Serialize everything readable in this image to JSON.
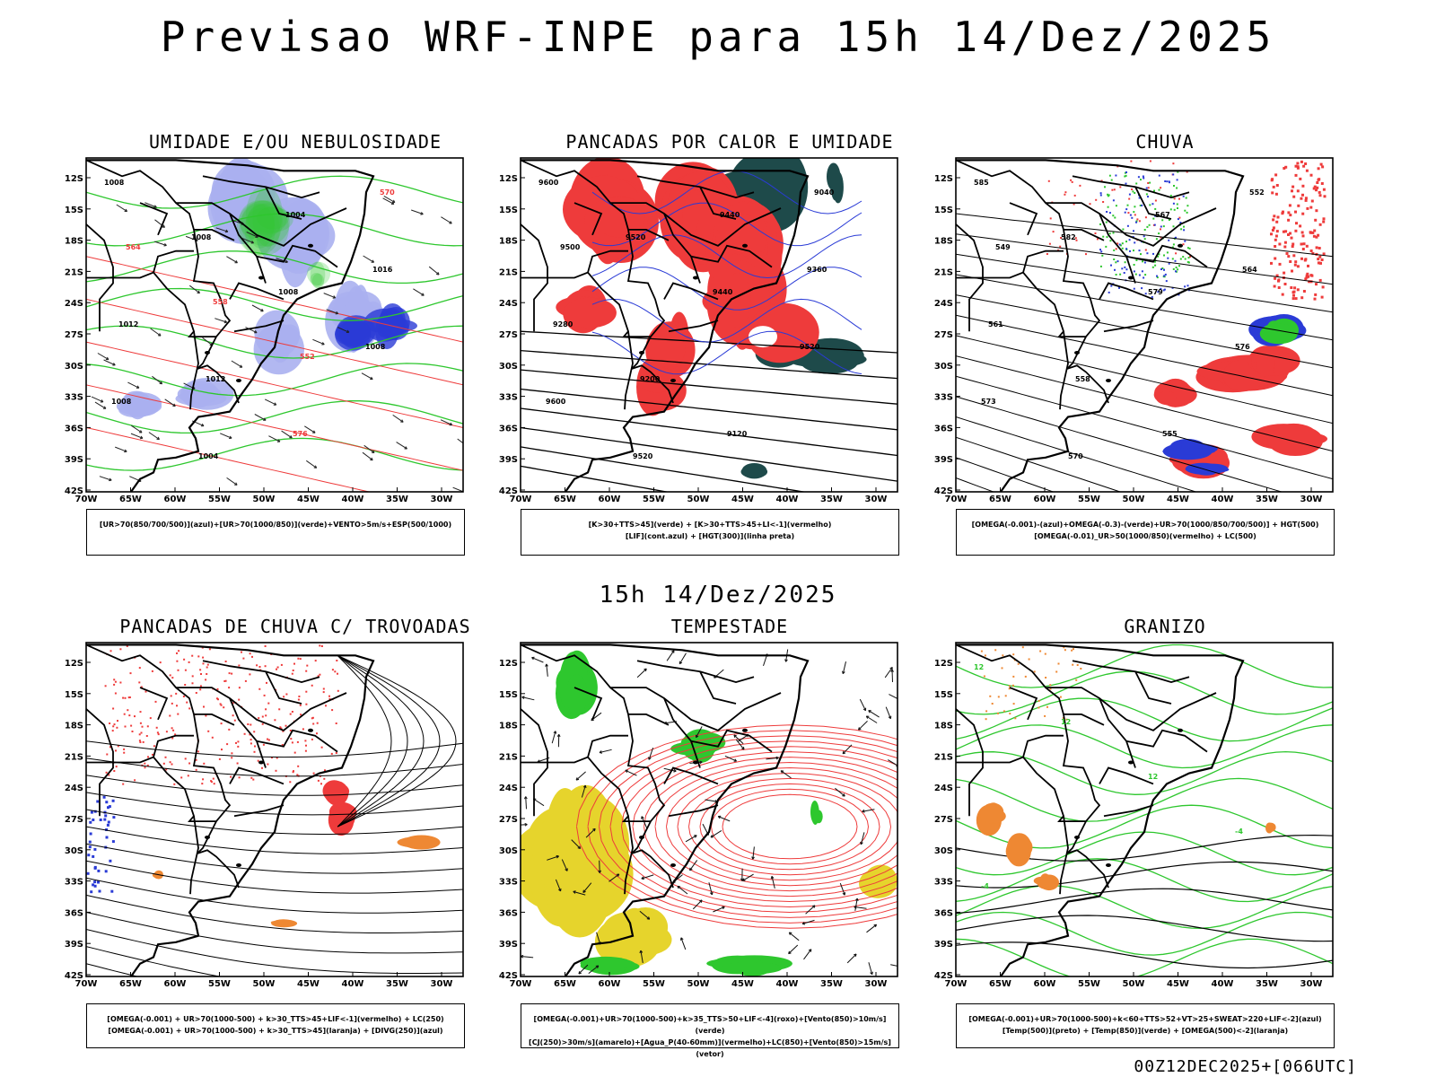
{
  "title": "Previsao WRF-INPE  para 15h 14/Dez/2025",
  "subtitle": "15h 14/Dez/2025",
  "footer": "00Z12DEC2025+[066UTC]",
  "axes": {
    "lat": [
      "12S",
      "15S",
      "18S",
      "21S",
      "24S",
      "27S",
      "30S",
      "33S",
      "36S",
      "39S",
      "42S"
    ],
    "lon": [
      "70W",
      "65W",
      "60W",
      "55W",
      "50W",
      "45W",
      "40W",
      "35W",
      "30W"
    ]
  },
  "colors": {
    "red": "#ee3b3b",
    "green": "#2ec72e",
    "blue": "#2a3bd6",
    "lightblue": "#aab0f0",
    "darkteal": "#1e4a4a",
    "yellow": "#e6d42c",
    "orange": "#ee8833",
    "black": "#000000"
  },
  "panels": [
    {
      "id": "umidade",
      "title": "UMIDADE E/OU NEBULOSIDADE",
      "legend": [
        "[UR>70(850/700/500)](azul)+[UR>70(1000/850)](verde)+VENTO>5m/s+ESP(500/1000)"
      ],
      "labels": [
        "1008",
        "1008",
        "1008",
        "1008",
        "1008",
        "1004",
        "1004",
        "1016",
        "1012",
        "1012",
        "576",
        "570",
        "564",
        "558",
        "552"
      ]
    },
    {
      "id": "pancadas-calor",
      "title": "PANCADAS POR CALOR E UMIDADE",
      "legend": [
        "[K>30+TTS>45](verde) + [K>30+TTS>45+LI<-1](vermelho)",
        "[LIF](cont.azul) + [HGT(300)](linha preta)"
      ],
      "labels": [
        "9600",
        "9520",
        "9440",
        "9520",
        "9600",
        "9520",
        "9440",
        "9360",
        "9280",
        "9200",
        "9120",
        "9040",
        "9500"
      ]
    },
    {
      "id": "chuva",
      "title": "CHUVA",
      "legend": [
        "[OMEGA(-0.001)-(azul)+OMEGA(-0.3)-(verde)+UR>70(1000/850/700/500)] + HGT(500)",
        "[OMEGA(-0.01)_UR>50(1000/850)(vermelho) + LC(500)"
      ],
      "labels": [
        "585",
        "582",
        "579",
        "576",
        "573",
        "570",
        "567",
        "564",
        "561",
        "558",
        "555",
        "552",
        "549"
      ]
    },
    {
      "id": "trovoadas",
      "title": "PANCADAS DE CHUVA C/ TROVOADAS",
      "legend": [
        "[OMEGA(-0.001) + UR>70(1000-500) + k>30_TTS>45+LIF<-1](vermelho) + LC(250)",
        "[OMEGA(-0.001) + UR>70(1000-500) + k>30_TTS>45](laranja) + [DIVG(250)](azul)"
      ],
      "labels": []
    },
    {
      "id": "tempestade",
      "title": "TEMPESTADE",
      "legend": [
        "[OMEGA(-0.001)+UR>70(1000-500)+k>35_TTS>50+LIF<-4](roxo)+[Vento(850)>10m/s](verde)",
        "[CJ(250)>30m/s](amarelo)+[Agua_P(40-60mm)](vermelho)+LC(850)+[Vento(850)>15m/s](vetor)"
      ],
      "labels": []
    },
    {
      "id": "granizo",
      "title": "GRANIZO",
      "legend": [
        "[OMEGA(-0.001)+UR>70(1000-500)+k<60+TTS>52+VT>25+SWEAT>220+LIF<-2](azul)",
        "[Temp(500)](preto) + [Temp(850)](verde) + [OMEGA(500)<-2](laranja)"
      ],
      "labels": [
        "12",
        "12",
        "12",
        "-4",
        "-4"
      ]
    }
  ]
}
